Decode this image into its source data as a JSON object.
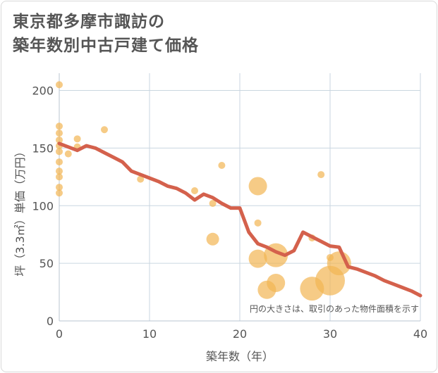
{
  "title_line1": "東京都多摩市諏訪の",
  "title_line2": "築年数別中古戸建て価格",
  "chart_data": {
    "type": "scatter",
    "title": "東京都多摩市諏訪の築年数別中古戸建て価格",
    "xlabel": "築年数（年）",
    "ylabel": "坪（3.3㎡）単価（万円）",
    "xlim": [
      0,
      40
    ],
    "ylim": [
      0,
      215
    ],
    "xticks": [
      0,
      10,
      20,
      30,
      40
    ],
    "yticks": [
      0,
      50,
      100,
      150,
      200
    ],
    "note": "円の大きさは、取引のあった物件面積を示す",
    "colors": {
      "bubble": "#f2b552",
      "line": "#d4614c",
      "grid": "#c9d6e0"
    },
    "bubbles": [
      {
        "x": 0,
        "y": 205,
        "size": 1
      },
      {
        "x": 0,
        "y": 169,
        "size": 1
      },
      {
        "x": 0,
        "y": 163,
        "size": 1
      },
      {
        "x": 0,
        "y": 157,
        "size": 1
      },
      {
        "x": 0,
        "y": 152,
        "size": 1
      },
      {
        "x": 0,
        "y": 147,
        "size": 1
      },
      {
        "x": 0,
        "y": 138,
        "size": 1
      },
      {
        "x": 0,
        "y": 130,
        "size": 1
      },
      {
        "x": 0,
        "y": 125,
        "size": 1
      },
      {
        "x": 0,
        "y": 116,
        "size": 1
      },
      {
        "x": 0,
        "y": 111,
        "size": 1
      },
      {
        "x": 1,
        "y": 145,
        "size": 1
      },
      {
        "x": 2,
        "y": 158,
        "size": 1
      },
      {
        "x": 2,
        "y": 151,
        "size": 1
      },
      {
        "x": 5,
        "y": 166,
        "size": 1
      },
      {
        "x": 9,
        "y": 123,
        "size": 1
      },
      {
        "x": 15,
        "y": 113,
        "size": 1
      },
      {
        "x": 17,
        "y": 102,
        "size": 1
      },
      {
        "x": 17,
        "y": 71,
        "size": 2
      },
      {
        "x": 18,
        "y": 135,
        "size": 1
      },
      {
        "x": 22,
        "y": 117,
        "size": 3
      },
      {
        "x": 22,
        "y": 85,
        "size": 1
      },
      {
        "x": 22,
        "y": 54,
        "size": 3
      },
      {
        "x": 23,
        "y": 27,
        "size": 3
      },
      {
        "x": 24,
        "y": 33,
        "size": 3
      },
      {
        "x": 24,
        "y": 57,
        "size": 4
      },
      {
        "x": 28,
        "y": 72,
        "size": 1
      },
      {
        "x": 28,
        "y": 28,
        "size": 4
      },
      {
        "x": 29,
        "y": 127,
        "size": 1
      },
      {
        "x": 30,
        "y": 55,
        "size": 1
      },
      {
        "x": 30,
        "y": 35,
        "size": 5
      },
      {
        "x": 31,
        "y": 50,
        "size": 4
      }
    ],
    "trend": {
      "x": [
        0,
        1,
        2,
        3,
        4,
        5,
        6,
        7,
        8,
        9,
        10,
        11,
        12,
        13,
        14,
        15,
        16,
        17,
        18,
        19,
        20,
        21,
        22,
        23,
        24,
        25,
        26,
        27,
        28,
        29,
        30,
        31,
        32,
        33,
        34,
        35,
        36,
        37,
        38,
        39,
        40
      ],
      "y": [
        154,
        151,
        148,
        152,
        150,
        146,
        142,
        138,
        130,
        127,
        124,
        121,
        117,
        115,
        111,
        105,
        110,
        107,
        102,
        98,
        98,
        77,
        67,
        64,
        60,
        57,
        61,
        77,
        73,
        69,
        65,
        64,
        47,
        45,
        42,
        39,
        35,
        32,
        29,
        26,
        22
      ]
    }
  }
}
